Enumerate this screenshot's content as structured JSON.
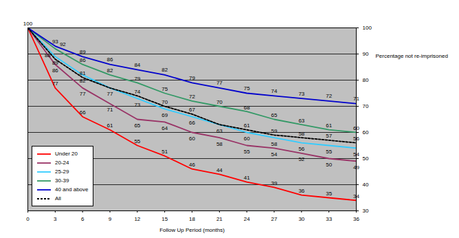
{
  "chart_data": {
    "type": "line",
    "x_label": "Follow Up Period (months)",
    "y_label": "Percentage not re-imprisoned",
    "x": [
      0,
      3,
      6,
      9,
      12,
      15,
      18,
      21,
      24,
      27,
      30,
      33,
      36
    ],
    "xlim": [
      0,
      36
    ],
    "xticks": [
      0,
      3,
      6,
      9,
      12,
      15,
      18,
      21,
      24,
      27,
      30,
      33,
      36
    ],
    "ylim": [
      30,
      100
    ],
    "yticks": [
      30,
      40,
      50,
      60,
      70,
      80,
      90,
      100
    ],
    "grid": true,
    "legend": "lower left",
    "data_labels": true,
    "series": [
      {
        "name": "Under 20",
        "color": "#ff0000",
        "line_style": "solid",
        "values": [
          100,
          77,
          66,
          61,
          55,
          51,
          46,
          44,
          41,
          39,
          36,
          35,
          34
        ]
      },
      {
        "name": "20-24",
        "color": "#993366",
        "line_style": "solid",
        "values": [
          100,
          86,
          77,
          71,
          65,
          64,
          60,
          58,
          55,
          54,
          52,
          50,
          49
        ]
      },
      {
        "name": "25-29",
        "color": "#33ccff",
        "line_style": "solid",
        "values": [
          100,
          89,
          82,
          77,
          73,
          69,
          66,
          63,
          60,
          58,
          56,
          55,
          54
        ]
      },
      {
        "name": "30-39",
        "color": "#339966",
        "line_style": "solid",
        "values": [
          100,
          92,
          86,
          82,
          79,
          75,
          72,
          70,
          68,
          65,
          63,
          61,
          60
        ]
      },
      {
        "name": "40 and above",
        "color": "#0000cc",
        "line_style": "solid",
        "values": [
          100,
          93,
          89,
          86,
          84,
          82,
          79,
          77,
          75,
          74,
          73,
          72,
          71
        ]
      },
      {
        "name": "All",
        "color": "#000000",
        "line_style": "dashed",
        "values": [
          100,
          88,
          81,
          77,
          74,
          70,
          67,
          63,
          61,
          59,
          58,
          57,
          56
        ]
      }
    ]
  }
}
